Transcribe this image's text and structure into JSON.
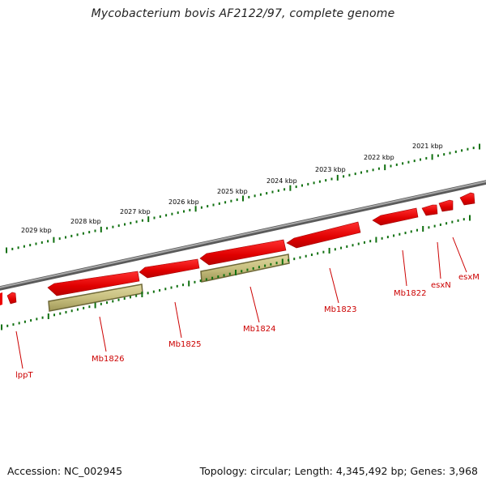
{
  "title": "Mycobacterium bovis AF2122/97, complete genome",
  "footer": {
    "accession": "Accession: NC_002945",
    "summary": "Topology: circular; Length: 4,345,492 bp; Genes: 3,968"
  },
  "colors": {
    "backbone": "#808080",
    "cds": "#ee0000",
    "gene": "#c8c080",
    "tick": "#107010",
    "label": "#cc0000"
  },
  "scale_ticks": [
    {
      "label": "2021 kbp"
    },
    {
      "label": "2022 kbp"
    },
    {
      "label": "2023 kbp"
    },
    {
      "label": "2024 kbp"
    },
    {
      "label": "2025 kbp"
    },
    {
      "label": "2026 kbp"
    },
    {
      "label": "2027 kbp"
    },
    {
      "label": "2028 kbp"
    },
    {
      "label": "2029 kbp"
    }
  ],
  "features": [
    {
      "label": "esxM",
      "type": "CDS",
      "strand": "reverse"
    },
    {
      "label": "esxN",
      "type": "CDS",
      "strand": "reverse"
    },
    {
      "label": "Mb1822",
      "type": "CDS",
      "strand": "reverse"
    },
    {
      "label": "Mb1823",
      "type": "CDS",
      "strand": "reverse"
    },
    {
      "label": "Mb1824",
      "type": "CDS",
      "strand": "reverse"
    },
    {
      "label": "Mb1824",
      "type": "gene",
      "strand": "reverse"
    },
    {
      "label": "Mb1825",
      "type": "CDS",
      "strand": "reverse"
    },
    {
      "label": "Mb1826",
      "type": "CDS",
      "strand": "reverse"
    },
    {
      "label": "Mb1826",
      "type": "gene",
      "strand": "reverse"
    },
    {
      "label": "lppT",
      "type": "CDS",
      "strand": "reverse"
    }
  ],
  "gene_labels": [
    "esxM",
    "esxN",
    "Mb1822",
    "Mb1823",
    "Mb1824",
    "Mb1825",
    "Mb1826",
    "lppT"
  ]
}
